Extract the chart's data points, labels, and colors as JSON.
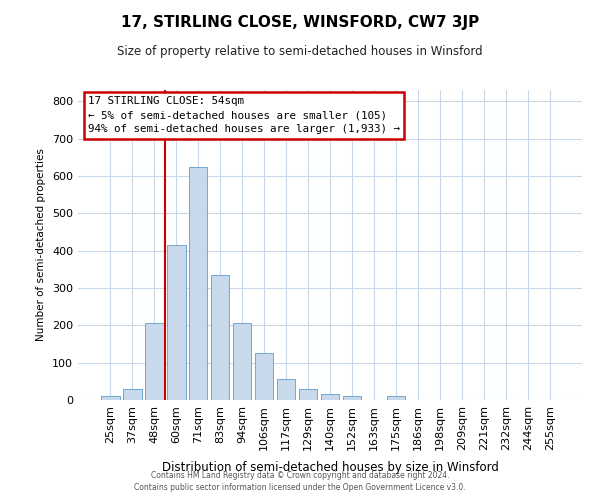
{
  "title": "17, STIRLING CLOSE, WINSFORD, CW7 3JP",
  "subtitle": "Size of property relative to semi-detached houses in Winsford",
  "xlabel": "Distribution of semi-detached houses by size in Winsford",
  "ylabel": "Number of semi-detached properties",
  "categories": [
    "25sqm",
    "37sqm",
    "48sqm",
    "60sqm",
    "71sqm",
    "83sqm",
    "94sqm",
    "106sqm",
    "117sqm",
    "129sqm",
    "140sqm",
    "152sqm",
    "163sqm",
    "175sqm",
    "186sqm",
    "198sqm",
    "209sqm",
    "221sqm",
    "232sqm",
    "244sqm",
    "255sqm"
  ],
  "bar_heights": [
    10,
    30,
    205,
    415,
    625,
    335,
    205,
    125,
    55,
    30,
    15,
    12,
    0,
    10,
    0,
    0,
    0,
    0,
    0,
    0,
    0
  ],
  "bar_color": "#c9d9ec",
  "bar_edge_color": "#6fa8d0",
  "vline_color": "#cc0000",
  "annotation_title": "17 STIRLING CLOSE: 54sqm",
  "annotation_line1": "← 5% of semi-detached houses are smaller (105)",
  "annotation_line2": "94% of semi-detached houses are larger (1,933) →",
  "annotation_box_color": "#cc0000",
  "ylim": [
    0,
    830
  ],
  "yticks": [
    0,
    100,
    200,
    300,
    400,
    500,
    600,
    700,
    800
  ],
  "footer1": "Contains HM Land Registry data © Crown copyright and database right 2024.",
  "footer2": "Contains public sector information licensed under the Open Government Licence v3.0.",
  "bg_color": "#ffffff",
  "grid_color": "#c8d8e8"
}
